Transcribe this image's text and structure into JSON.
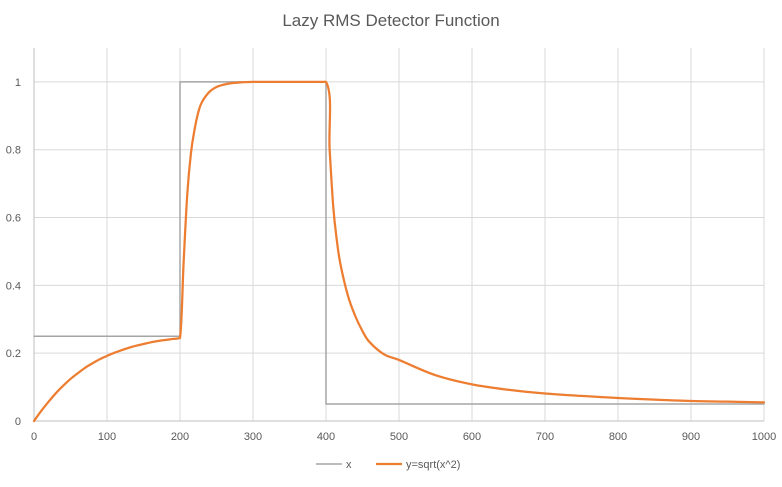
{
  "chart_data": {
    "type": "line",
    "title": "Lazy RMS Detector Function",
    "xlabel": "",
    "ylabel": "",
    "xlim": [
      0,
      1000
    ],
    "ylim": [
      0,
      1.1
    ],
    "x_ticks": [
      0,
      100,
      200,
      300,
      400,
      500,
      600,
      700,
      800,
      900,
      1000
    ],
    "y_ticks": [
      0,
      0.2,
      0.4,
      0.6,
      0.8,
      1
    ],
    "x_tick_labels": [
      "0",
      "100",
      "200",
      "300",
      "400",
      "500",
      "600",
      "700",
      "800",
      "900",
      "1000"
    ],
    "y_tick_labels": [
      "0",
      "0.2",
      "0.4",
      "0.6",
      "0.8",
      "1"
    ],
    "grid": true,
    "legend_position": "bottom",
    "series": [
      {
        "name": "x",
        "color": "#a5a5a5",
        "x": [
          0,
          200,
          200,
          400,
          400,
          1000
        ],
        "y": [
          0.25,
          0.25,
          1,
          1,
          0.05,
          0.05
        ]
      },
      {
        "name": "y=sqrt(x^2)",
        "color": "#ed7d31",
        "x": [
          0,
          10,
          20,
          30,
          40,
          50,
          60,
          70,
          80,
          90,
          100,
          110,
          120,
          130,
          140,
          150,
          160,
          170,
          180,
          190,
          200,
          205,
          210,
          215,
          220,
          225,
          230,
          240,
          250,
          260,
          270,
          280,
          300,
          350,
          400,
          405,
          410,
          415,
          420,
          430,
          440,
          450,
          460,
          480,
          500,
          550,
          600,
          650,
          700,
          750,
          800,
          850,
          900,
          950,
          1000
        ],
        "y": [
          0,
          0.03,
          0.057,
          0.082,
          0.104,
          0.124,
          0.141,
          0.157,
          0.17,
          0.182,
          0.192,
          0.201,
          0.209,
          0.216,
          0.222,
          0.227,
          0.232,
          0.236,
          0.239,
          0.242,
          0.245,
          0.47,
          0.67,
          0.79,
          0.86,
          0.91,
          0.94,
          0.97,
          0.985,
          0.992,
          0.996,
          0.998,
          1.0,
          1.0,
          1.0,
          0.8,
          0.63,
          0.53,
          0.46,
          0.37,
          0.31,
          0.265,
          0.232,
          0.196,
          0.18,
          0.135,
          0.108,
          0.092,
          0.081,
          0.074,
          0.068,
          0.063,
          0.059,
          0.057,
          0.055
        ]
      }
    ]
  }
}
